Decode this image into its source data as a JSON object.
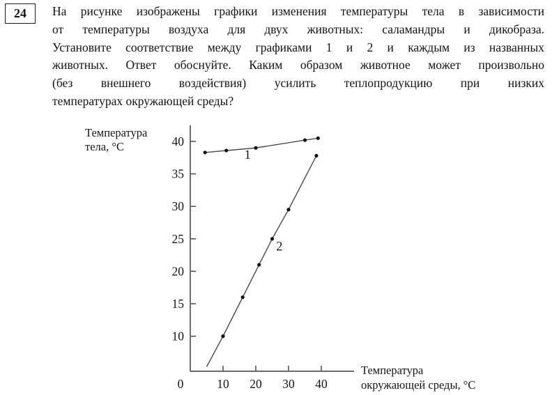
{
  "question": {
    "number": "24",
    "text_lines": [
      "На рисунке изображены графики изменения температуры тела в зависимости",
      "от температуры воздуха для двух животных: саламандры и дикобраза.",
      "Установите соответствие между графиками 1 и 2 и каждым из названных",
      "животных. Ответ обоснуйте. Каким образом животное может произвольно",
      "(без внешнего воздействия) усилить теплопродукцию при низких",
      "температурах окружающей среды?"
    ]
  },
  "chart_data": {
    "type": "line",
    "title": "",
    "ylabel": "Температура тела, °С",
    "xlabel": "Температура окружающей среды, °С",
    "ylabel_lines": [
      "Температура",
      "тела, °С"
    ],
    "xlabel_lines": [
      "Температура",
      "окружающей среды, °С"
    ],
    "x_ticks": [
      0,
      10,
      20,
      30,
      40
    ],
    "y_ticks": [
      40,
      35,
      30,
      25,
      20,
      15,
      10
    ],
    "xlim": [
      0,
      50
    ],
    "ylim": [
      4.6,
      42.5
    ],
    "grid": false,
    "legend": "inline-numeric-labels",
    "axis_color": "#3b3b3b",
    "line_color": "#3c3c3c",
    "dot_color": "#111111",
    "series": [
      {
        "name": "curve-1",
        "label": "1",
        "label_pos": [
          17.5,
          37.3
        ],
        "points": [
          [
            4.5,
            38.3
          ],
          [
            11,
            38.6
          ],
          [
            20,
            39
          ],
          [
            35,
            40.2
          ],
          [
            39,
            40.5
          ]
        ]
      },
      {
        "name": "curve-2",
        "label": "2",
        "label_pos": [
          27.2,
          23.2
        ],
        "line_start": [
          5,
          5.3
        ],
        "points": [
          [
            10,
            10
          ],
          [
            16,
            16
          ],
          [
            21,
            21
          ],
          [
            25,
            25
          ],
          [
            30,
            29.5
          ],
          [
            38.5,
            37.8
          ]
        ]
      }
    ]
  }
}
